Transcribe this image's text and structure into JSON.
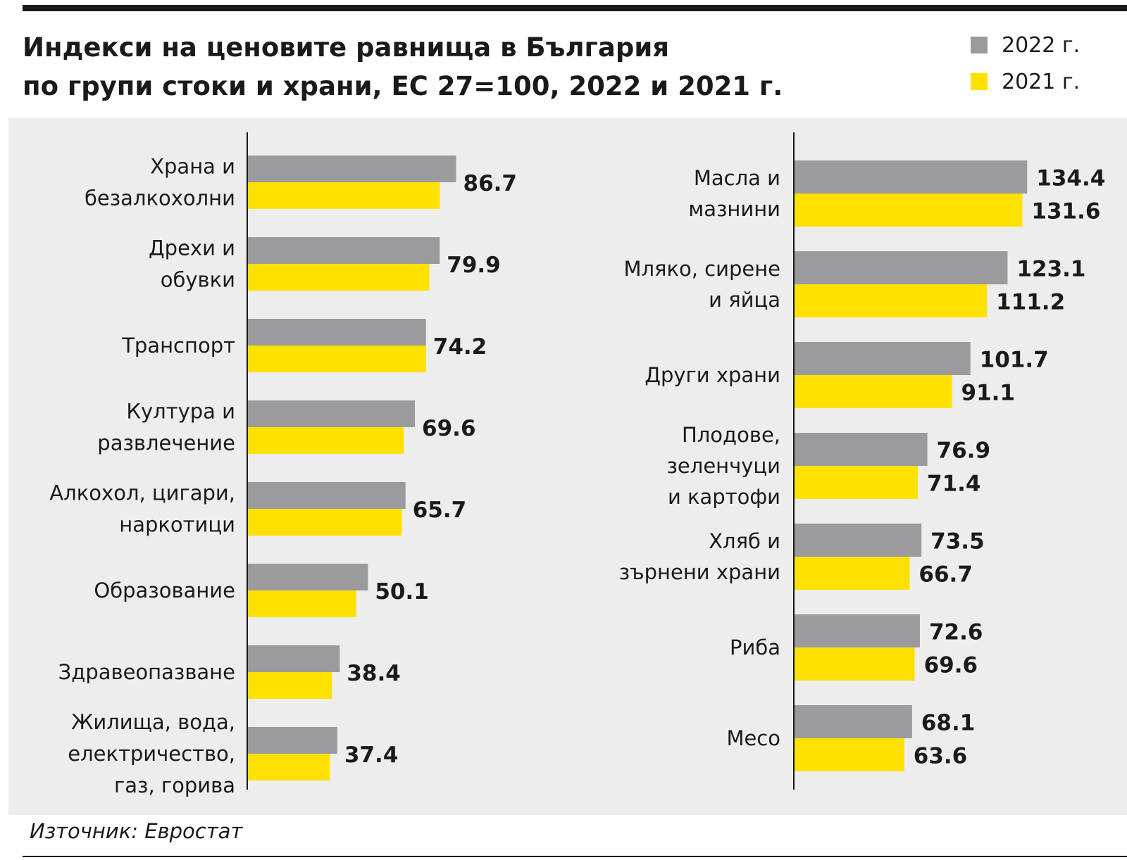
{
  "title_lines": [
    "Индекси на ценовите равнища в България",
    "по групи стоки и храни, ЕС 27=100, 2022 и 2021 г."
  ],
  "source": "Източник: Евростат",
  "colors": {
    "y2022": "#9b9b9d",
    "y2021": "#ffe100",
    "panel": "#ededed",
    "text": "#1a1a1a"
  },
  "chart_data": [
    {
      "type": "bar",
      "orientation": "horizontal",
      "legend": "top-right",
      "categories": [
        [
          "Храна и",
          "безалкохолни"
        ],
        [
          "Дрехи и",
          "обувки"
        ],
        [
          "Транспорт"
        ],
        [
          "Култура и",
          "развлечение"
        ],
        [
          "Алкохол, цигари,",
          "наркотици"
        ],
        [
          "Образование"
        ],
        [
          "Здравеопазване"
        ],
        [
          "Жилища, вода,",
          "електричество,",
          "газ, горива"
        ]
      ],
      "series": [
        {
          "name": "2022 г.",
          "values": [
            86.7,
            79.9,
            74.2,
            69.6,
            65.7,
            50.1,
            38.4,
            37.4
          ]
        },
        {
          "name": "2021 г.",
          "values": [
            79.9,
            75.6,
            74.2,
            65.0,
            64.2,
            45.3,
            35.2,
            34.3
          ]
        }
      ],
      "value_labels": [
        "86.7",
        "79.9",
        "74.2",
        "69.6",
        "65.7",
        "50.1",
        "38.4",
        "37.4"
      ]
    },
    {
      "type": "bar",
      "orientation": "horizontal",
      "categories": [
        [
          "Масла и",
          "мазнини"
        ],
        [
          "Мляко, сирене",
          "и яйца"
        ],
        [
          "Други храни"
        ],
        [
          "Плодове,",
          "зеленчуци",
          "и картофи"
        ],
        [
          "Хляб и",
          "зърнени храни"
        ],
        [
          "Риба"
        ],
        [
          "Месо"
        ]
      ],
      "series": [
        {
          "name": "2022 г.",
          "values": [
            134.4,
            123.1,
            101.7,
            76.9,
            73.5,
            72.6,
            68.1
          ],
          "labels": [
            "134.4",
            "123.1",
            "101.7",
            "76.9",
            "73.5",
            "72.6",
            "68.1"
          ]
        },
        {
          "name": "2021 г.",
          "values": [
            131.6,
            111.2,
            91.1,
            71.4,
            66.7,
            69.6,
            63.6
          ],
          "labels": [
            "131.6",
            "111.2",
            "91.1",
            "71.4",
            "66.7",
            "69.6",
            "63.6"
          ]
        }
      ]
    }
  ]
}
